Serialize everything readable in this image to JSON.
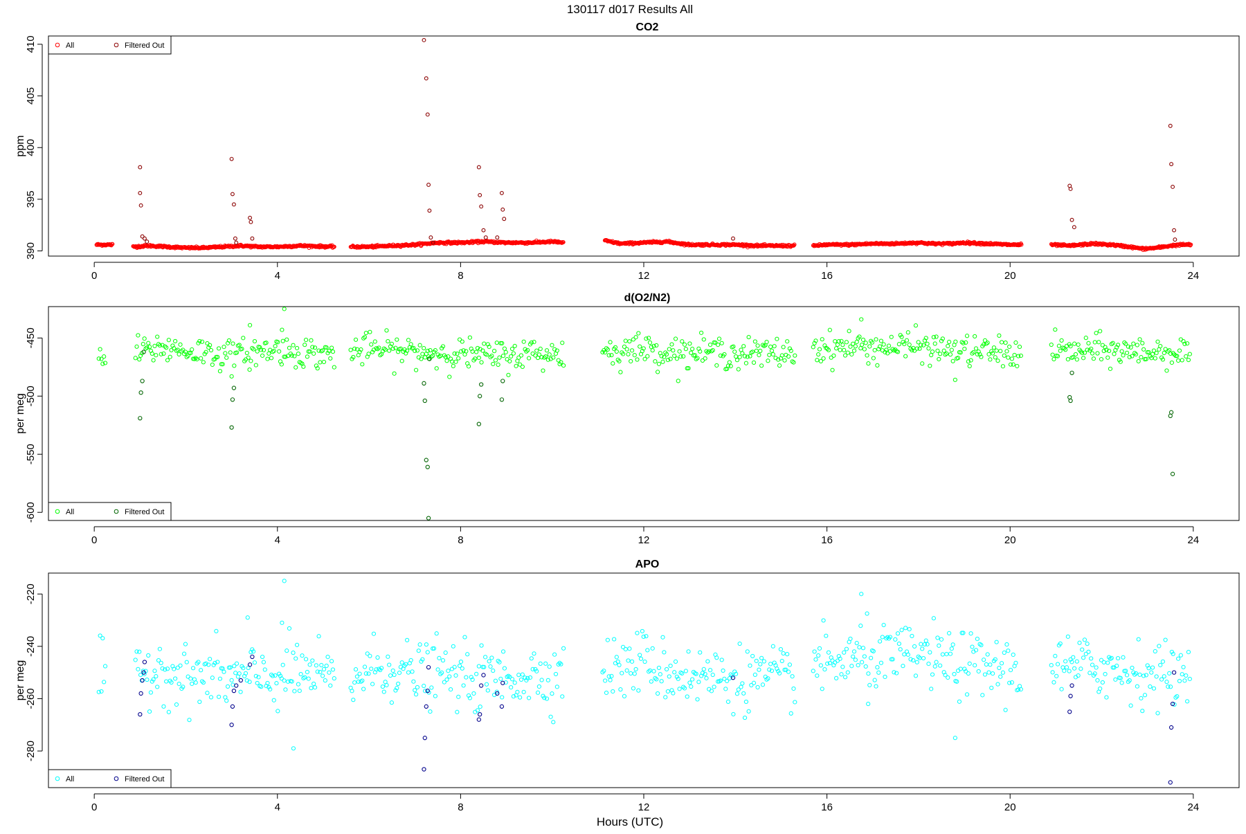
{
  "figure": {
    "main_title": "130117   d017   Results All",
    "xlabel": "Hours (UTC)"
  },
  "chart_data": [
    {
      "type": "scatter",
      "title": "CO2",
      "xlabel": "Hours (UTC)",
      "ylabel": "ppm",
      "xlim": [
        -1.0,
        25.0
      ],
      "ylim": [
        389.5,
        410.8
      ],
      "xticks": [
        0,
        4,
        8,
        12,
        16,
        20,
        24
      ],
      "yticks": [
        390,
        395,
        400,
        405,
        410
      ],
      "grid": false,
      "legend_position": "top-left",
      "legend": [
        "All",
        "Filtered Out"
      ],
      "colors": {
        "all": "#ff0000",
        "filtered": "#8b0000"
      },
      "segments": [
        {
          "x": [
            0.05,
            0.22,
            0.4
          ],
          "y": [
            390.6,
            390.6,
            390.6
          ]
        },
        {
          "x": [
            0.85,
            1.2,
            1.6,
            2.0,
            2.4,
            2.8,
            3.2,
            3.6,
            4.0,
            4.5,
            5.25
          ],
          "y": [
            390.4,
            390.5,
            390.4,
            390.3,
            390.3,
            390.4,
            390.5,
            390.4,
            390.4,
            390.5,
            390.4
          ]
        },
        {
          "x": [
            5.6,
            6.0,
            6.5,
            7.0,
            7.5,
            8.0,
            8.5,
            9.0,
            9.5,
            10.0,
            10.25
          ],
          "y": [
            390.4,
            390.4,
            390.5,
            390.6,
            390.8,
            390.8,
            390.9,
            390.8,
            390.8,
            390.9,
            390.8
          ]
        },
        {
          "x": [
            11.15,
            11.5,
            12.0,
            12.5,
            13.0,
            13.5,
            14.0,
            14.5,
            15.0,
            15.3
          ],
          "y": [
            391.0,
            390.7,
            390.8,
            390.9,
            390.6,
            390.6,
            390.6,
            390.5,
            390.5,
            390.5
          ]
        },
        {
          "x": [
            15.7,
            16.0,
            16.5,
            17.0,
            17.5,
            18.0,
            18.3,
            18.7,
            19.0,
            19.5,
            20.0,
            20.25
          ],
          "y": [
            390.5,
            390.6,
            390.6,
            390.7,
            390.7,
            390.8,
            390.7,
            390.7,
            390.8,
            390.7,
            390.6,
            390.6
          ]
        },
        {
          "x": [
            20.9,
            21.3,
            21.8,
            22.2,
            22.6,
            22.9,
            23.2,
            23.5,
            23.7,
            23.95
          ],
          "y": [
            390.6,
            390.5,
            390.7,
            390.6,
            390.4,
            390.2,
            390.3,
            390.5,
            390.6,
            390.6
          ]
        }
      ],
      "outliers": {
        "x": [
          1.0,
          1.0,
          1.02,
          1.05,
          1.1,
          1.15,
          3.0,
          3.02,
          3.05,
          3.08,
          3.1,
          3.4,
          3.42,
          3.45,
          7.2,
          7.25,
          7.28,
          7.3,
          7.32,
          7.35,
          7.4,
          8.4,
          8.42,
          8.45,
          8.5,
          8.55,
          8.8,
          8.9,
          8.92,
          8.95,
          13.95,
          21.3,
          21.32,
          21.35,
          21.4,
          23.5,
          23.52,
          23.55,
          23.58,
          23.6
        ],
        "y": [
          398.1,
          395.6,
          394.4,
          391.4,
          391.2,
          390.9,
          398.9,
          395.5,
          394.5,
          391.2,
          390.8,
          393.2,
          392.8,
          391.2,
          410.4,
          406.7,
          403.2,
          396.4,
          393.9,
          391.3,
          390.8,
          398.1,
          395.4,
          394.3,
          392.0,
          391.3,
          391.3,
          395.6,
          394.0,
          393.1,
          391.2,
          396.3,
          396.0,
          393.0,
          392.3,
          402.1,
          398.4,
          396.2,
          392.0,
          391.1
        ]
      }
    },
    {
      "type": "scatter",
      "title": "d(O2/N2)",
      "xlabel": "Hours (UTC)",
      "ylabel": "per meg",
      "xlim": [
        -1.0,
        25.0
      ],
      "ylim": [
        -607,
        -423
      ],
      "xticks": [
        0,
        4,
        8,
        12,
        16,
        20,
        24
      ],
      "yticks": [
        -450,
        -500,
        -550,
        -600
      ],
      "grid": false,
      "legend_position": "bottom-left",
      "legend": [
        "All",
        "Filtered Out"
      ],
      "colors": {
        "all": "#00ff00",
        "filtered": "#006400"
      },
      "segments": [
        {
          "x": [
            0.1,
            0.15,
            0.2,
            0.25
          ],
          "y": [
            -470,
            -465,
            -468,
            -472
          ]
        },
        {
          "x": [
            0.9,
            1.5,
            2.0,
            2.5,
            3.0,
            3.5,
            4.0,
            4.5,
            5.0,
            5.25
          ],
          "y": [
            -463,
            -458,
            -461,
            -462,
            -466,
            -462,
            -460,
            -462,
            -464,
            -464
          ]
        },
        {
          "x": [
            5.6,
            6.0,
            6.5,
            7.0,
            7.5,
            8.0,
            8.5,
            9.0,
            9.5,
            10.0,
            10.25
          ],
          "y": [
            -463,
            -459,
            -461,
            -462,
            -463,
            -463,
            -466,
            -465,
            -463,
            -464,
            -463
          ]
        },
        {
          "x": [
            11.1,
            11.5,
            12.0,
            12.5,
            13.0,
            13.5,
            14.0,
            14.5,
            15.0,
            15.3
          ],
          "y": [
            -462,
            -461,
            -459,
            -462,
            -463,
            -462,
            -463,
            -464,
            -463,
            -463
          ]
        },
        {
          "x": [
            15.7,
            16.0,
            16.5,
            17.0,
            17.5,
            18.0,
            18.5,
            19.0,
            19.5,
            20.0,
            20.25
          ],
          "y": [
            -458,
            -459,
            -457,
            -458,
            -458,
            -457,
            -460,
            -461,
            -462,
            -463,
            -464
          ]
        },
        {
          "x": [
            20.9,
            21.3,
            21.8,
            22.3,
            22.8,
            23.3,
            23.7,
            23.95
          ],
          "y": [
            -460,
            -462,
            -461,
            -461,
            -462,
            -462,
            -462,
            -463
          ]
        }
      ],
      "outliers": {
        "x": [
          1.0,
          1.02,
          1.05,
          1.08,
          3.0,
          3.02,
          3.05,
          7.2,
          7.22,
          7.25,
          7.28,
          7.3,
          7.32,
          8.4,
          8.42,
          8.45,
          8.9,
          8.92,
          21.3,
          21.32,
          21.35,
          23.5,
          23.52,
          23.55
        ],
        "y": [
          -519,
          -497,
          -487,
          -462,
          -527,
          -503,
          -493,
          -489,
          -504,
          -555,
          -561,
          -605,
          -468,
          -524,
          -500,
          -490,
          -503,
          -487,
          -501,
          -504,
          -480,
          -517,
          -514,
          -567
        ]
      },
      "extreme_points": {
        "x": [
          3.4,
          4.1,
          4.15,
          7.3,
          16.75,
          18.8
        ],
        "y": [
          -439,
          -443,
          -425,
          -466,
          -434,
          -486
        ]
      }
    },
    {
      "type": "scatter",
      "title": "APO",
      "xlabel": "Hours (UTC)",
      "ylabel": "per meg",
      "xlim": [
        -1.0,
        25.0
      ],
      "ylim": [
        -294,
        -212
      ],
      "xticks": [
        0,
        4,
        8,
        12,
        16,
        20,
        24
      ],
      "yticks": [
        -220,
        -240,
        -260,
        -280
      ],
      "grid": false,
      "legend_position": "bottom-left",
      "legend": [
        "All",
        "Filtered Out"
      ],
      "colors": {
        "all": "#00ffff",
        "filtered": "#00008b"
      },
      "segments": [
        {
          "x": [
            0.1,
            0.15,
            0.2,
            0.25
          ],
          "y": [
            -255,
            -250,
            -252,
            -256
          ]
        },
        {
          "x": [
            0.9,
            1.5,
            2.0,
            2.5,
            3.0,
            3.5,
            4.0,
            4.5,
            5.0,
            5.25
          ],
          "y": [
            -252,
            -248,
            -253,
            -251,
            -253,
            -252,
            -252,
            -250,
            -252,
            -254
          ]
        },
        {
          "x": [
            5.6,
            6.0,
            6.5,
            7.0,
            7.5,
            8.0,
            8.5,
            9.0,
            9.5,
            10.0,
            10.25
          ],
          "y": [
            -253,
            -249,
            -248,
            -251,
            -250,
            -252,
            -253,
            -252,
            -251,
            -251,
            -250
          ]
        },
        {
          "x": [
            11.1,
            11.5,
            12.0,
            12.5,
            13.0,
            13.5,
            14.0,
            14.5,
            15.0,
            15.3
          ],
          "y": [
            -248,
            -249,
            -245,
            -250,
            -251,
            -252,
            -252,
            -252,
            -253,
            -251
          ]
        },
        {
          "x": [
            15.7,
            16.0,
            16.5,
            17.0,
            17.5,
            18.0,
            18.5,
            19.0,
            19.5,
            20.0,
            20.25
          ],
          "y": [
            -248,
            -247,
            -245,
            -244,
            -245,
            -243,
            -246,
            -247,
            -248,
            -249,
            -250
          ]
        },
        {
          "x": [
            20.9,
            21.3,
            21.8,
            22.3,
            22.8,
            23.3,
            23.7,
            23.95
          ],
          "y": [
            -247,
            -249,
            -247,
            -249,
            -250,
            -251,
            -251,
            -250
          ]
        }
      ],
      "outliers": {
        "x": [
          1.0,
          1.02,
          1.05,
          1.08,
          1.1,
          3.0,
          3.02,
          3.05,
          3.1,
          3.2,
          3.4,
          3.45,
          7.2,
          7.22,
          7.25,
          7.28,
          7.3,
          8.4,
          8.42,
          8.45,
          8.5,
          8.8,
          8.9,
          8.92,
          13.95,
          21.3,
          21.32,
          21.35,
          23.5,
          23.52,
          23.55,
          23.58
        ],
        "y": [
          -266,
          -258,
          -253,
          -250,
          -246,
          -270,
          -263,
          -257,
          -255,
          -253,
          -247,
          -244,
          -287,
          -275,
          -263,
          -257,
          -248,
          -268,
          -266,
          -255,
          -251,
          -258,
          -263,
          -254,
          -252,
          -265,
          -259,
          -255,
          -292,
          -271,
          -262,
          -250
        ]
      },
      "extreme_points": {
        "x": [
          4.1,
          4.15,
          3.35,
          4.35,
          16.75,
          18.8,
          16.9
        ],
        "y": [
          -231,
          -215,
          -229,
          -279,
          -220,
          -275,
          -262
        ]
      }
    }
  ]
}
